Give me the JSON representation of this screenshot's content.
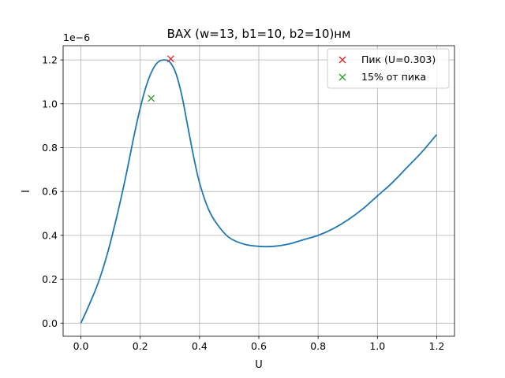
{
  "chart_data": {
    "type": "line",
    "title": "ВАХ (w=13, b1=10, b2=10)нм",
    "xlabel": "U",
    "ylabel": "I",
    "y_offset_text": "1e−6",
    "xlim": [
      -0.06,
      1.26
    ],
    "ylim": [
      -0.06,
      1.265
    ],
    "x_ticks": [
      0.0,
      0.2,
      0.4,
      0.6,
      0.8,
      1.0,
      1.2
    ],
    "x_tick_labels": [
      "0.0",
      "0.2",
      "0.4",
      "0.6",
      "0.8",
      "1.0",
      "1.2"
    ],
    "y_ticks": [
      0.0,
      0.2,
      0.4,
      0.6,
      0.8,
      1.0,
      1.2
    ],
    "y_tick_labels": [
      "0.0",
      "0.2",
      "0.4",
      "0.6",
      "0.8",
      "1.0",
      "1.2"
    ],
    "y_unit_scale": "1e-6",
    "grid": true,
    "legend_position": "top-right",
    "series": [
      {
        "color": "#1f77b4",
        "x": [
          0.0,
          0.03,
          0.06,
          0.09,
          0.12,
          0.15,
          0.18,
          0.2,
          0.22,
          0.24,
          0.26,
          0.28,
          0.3,
          0.32,
          0.34,
          0.36,
          0.38,
          0.4,
          0.43,
          0.46,
          0.5,
          0.55,
          0.6,
          0.65,
          0.7,
          0.75,
          0.8,
          0.85,
          0.9,
          0.95,
          1.0,
          1.05,
          1.1,
          1.15,
          1.2
        ],
        "y": [
          0.0,
          0.09,
          0.19,
          0.32,
          0.48,
          0.66,
          0.86,
          0.98,
          1.08,
          1.15,
          1.19,
          1.2,
          1.19,
          1.14,
          1.04,
          0.9,
          0.76,
          0.64,
          0.52,
          0.45,
          0.39,
          0.36,
          0.35,
          0.35,
          0.36,
          0.38,
          0.4,
          0.43,
          0.47,
          0.52,
          0.58,
          0.64,
          0.71,
          0.78,
          0.86
        ]
      }
    ],
    "markers": [
      {
        "name": "Пик (U=0.303)",
        "x": 0.303,
        "y": 1.205,
        "color": "#d62728",
        "symbol": "x"
      },
      {
        "name": "15% от пика",
        "x": 0.237,
        "y": 1.025,
        "color": "#2ca02c",
        "symbol": "x"
      }
    ]
  }
}
